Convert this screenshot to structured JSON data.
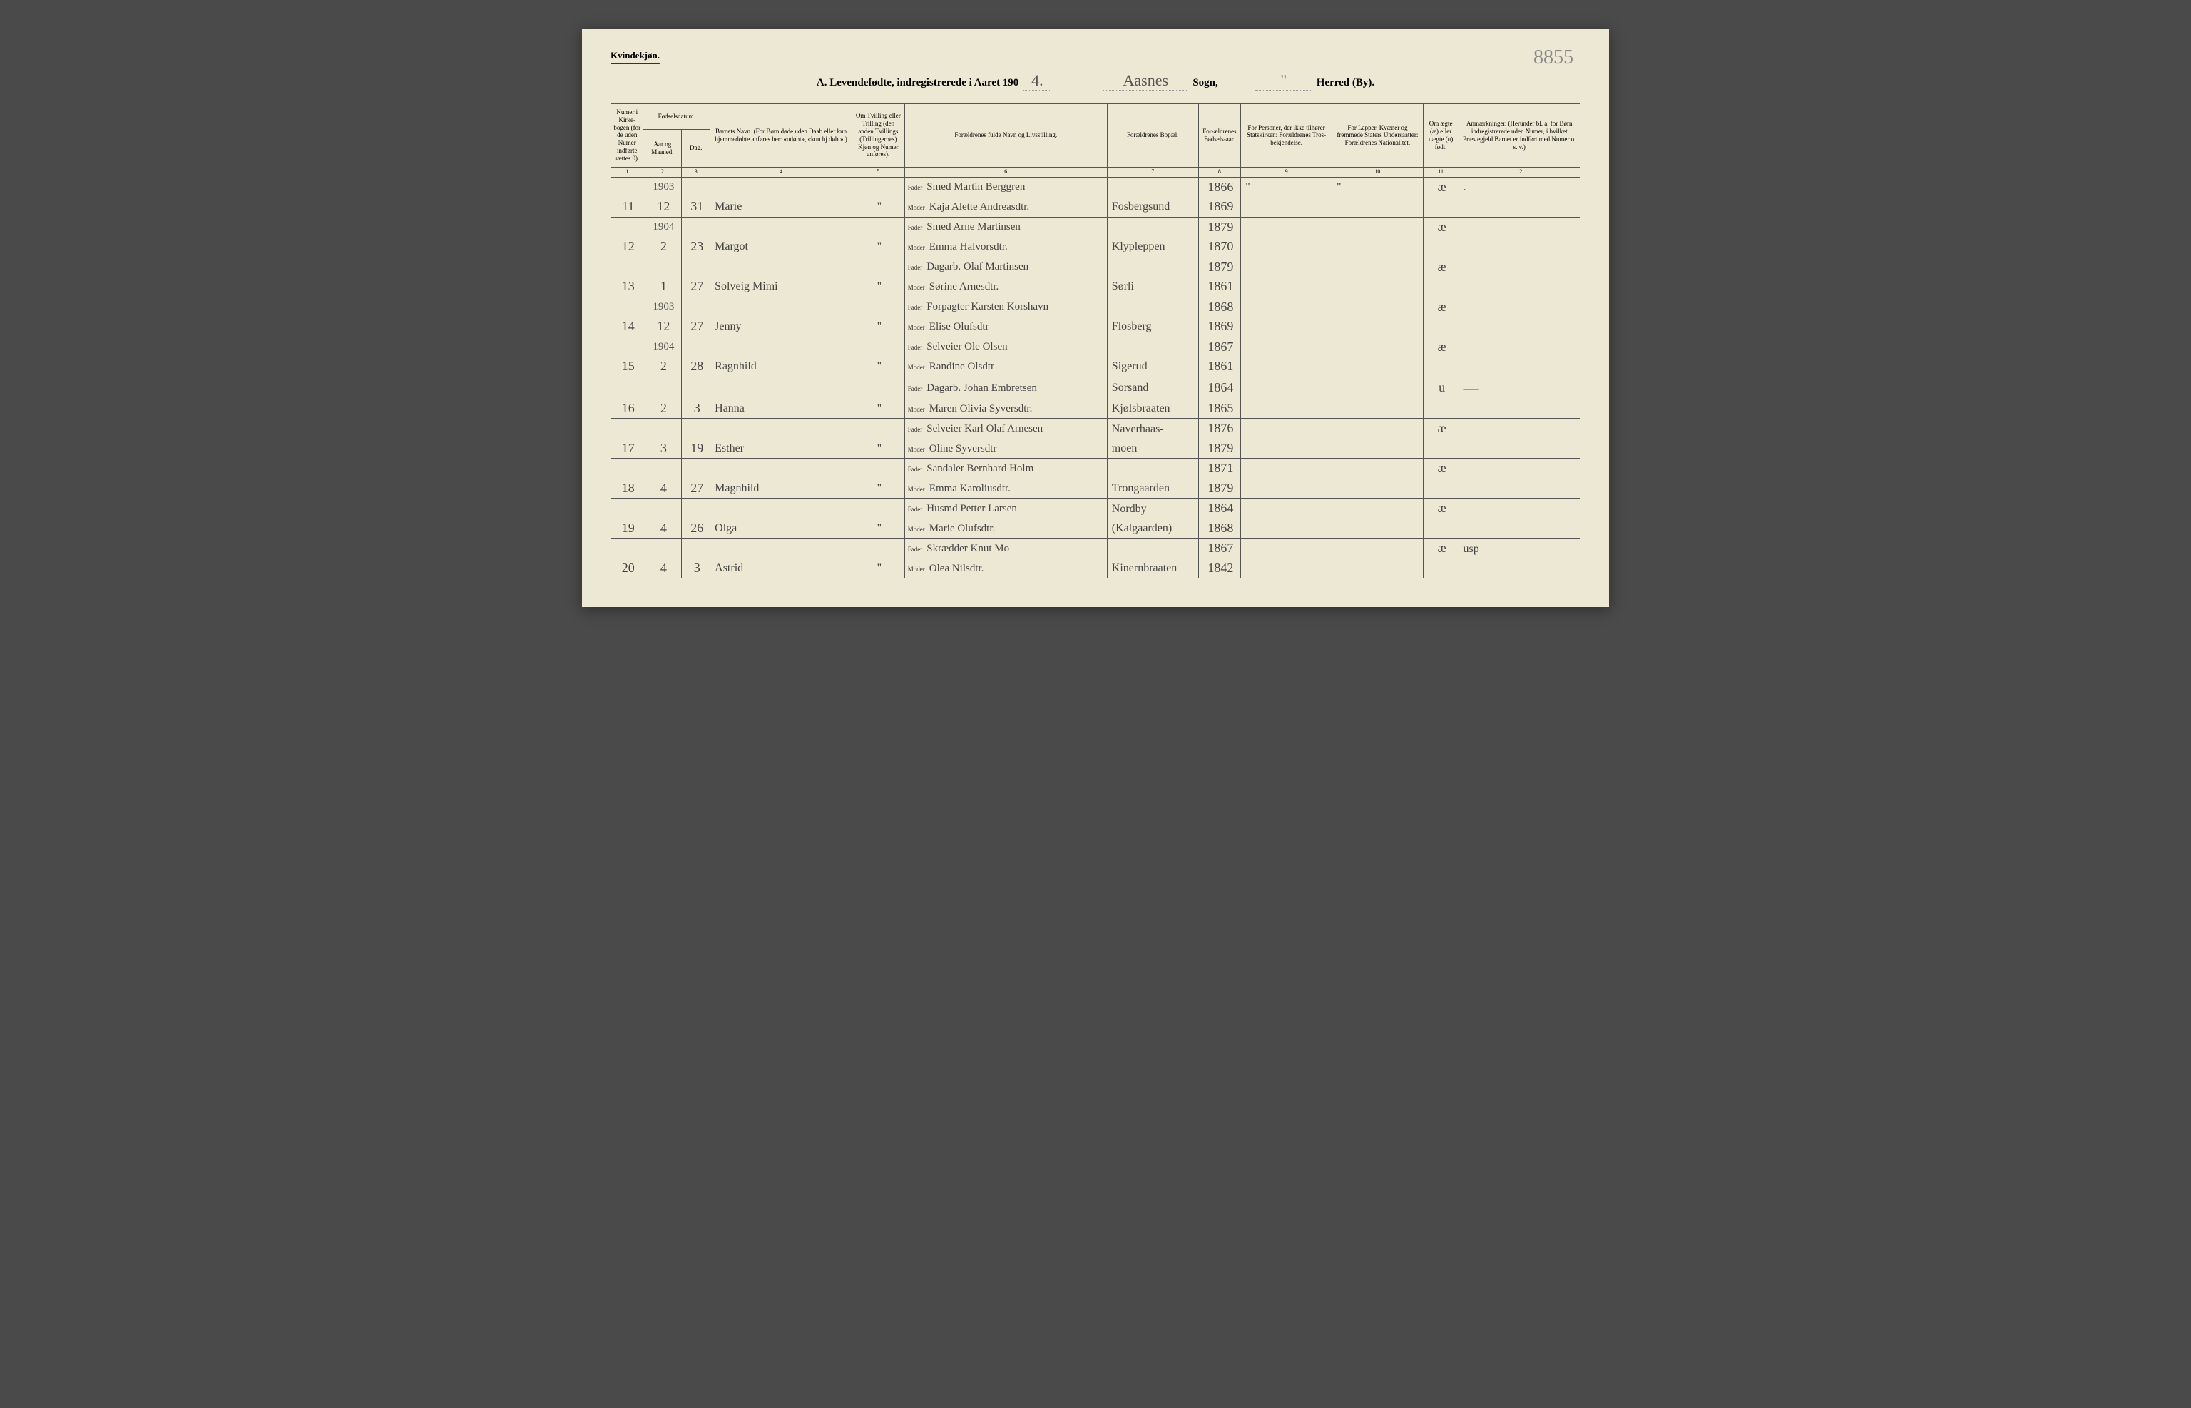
{
  "header": {
    "gender_label": "Kvindekjøn.",
    "page_number": "8855",
    "title_prefix": "A.  Levendefødte, indregistrerede i Aaret 190",
    "title_year_suffix": "4.",
    "sogn_value": "Aasnes",
    "sogn_label": "Sogn,",
    "herred_value": "\"",
    "herred_label": "Herred (By)."
  },
  "columns": {
    "c1": "Numer i Kirke-bogen (for de uden Numer indførte sættes 0).",
    "c2_group": "Fødselsdatum.",
    "c2": "Aar og Maaned.",
    "c3": "Dag.",
    "c4": "Barnets Navn.\n(For Børn døde uden Daab eller kun hjemmedøbte anføres her: «udøbt», «kun hj.døbt».)",
    "c5": "Om Tvilling eller Trilling (den anden Tvillings (Trillingernes) Kjøn og Numer anføres).",
    "c6": "Forældrenes fulde Navn og Livsstilling.",
    "c7": "Forældrenes Bopæl.",
    "c8": "For-ældrenes Fødsels-aar.",
    "c9": "For Personer, der ikke tilhører Statskirken: Forældrenes Tros-bekjendelse.",
    "c10": "For Lapper, Kvæner og fremmede Staters Undersaatter: Forældrenes Nationalitet.",
    "c11": "Om ægte (æ) eller uægte (u) født.",
    "c12": "Anmærkninger.\n(Herunder bl. a. for Børn indregistrerede uden Numer, i hvilket Præstegjeld Barnet er indført med Numer o. s. v.)"
  },
  "col_nums": [
    "1",
    "2",
    "3",
    "4",
    "5",
    "6",
    "7",
    "8",
    "9",
    "10",
    "11",
    "12"
  ],
  "labels": {
    "fader": "Fader",
    "moder": "Moder"
  },
  "years": {
    "y1903": "1903",
    "y1904": "1904"
  },
  "rows": [
    {
      "num": "11",
      "yearAbove": "1903",
      "month": "12",
      "day": "31",
      "name": "Marie",
      "twin": "\"",
      "fader": "Smed Martin Berggren",
      "moder": "Kaja Alette Andreasdtr.",
      "bopael": "Fosbergsund",
      "fYear": "1866",
      "mYear": "1869",
      "c9": "\"",
      "c10": "\"",
      "legit": "æ",
      "remarks": "."
    },
    {
      "num": "12",
      "yearAbove": "1904",
      "month": "2",
      "day": "23",
      "name": "Margot",
      "twin": "\"",
      "fader": "Smed Arne Martinsen",
      "moder": "Emma Halvorsdtr.",
      "bopael": "Klypleppen",
      "fYear": "1879",
      "mYear": "1870",
      "c9": "",
      "c10": "",
      "legit": "æ",
      "remarks": ""
    },
    {
      "num": "13",
      "yearAbove": "",
      "month": "1",
      "day": "27",
      "name": "Solveig Mimi",
      "twin": "\"",
      "fader": "Dagarb. Olaf Martinsen",
      "moder": "Sørine Arnesdtr.",
      "bopael": "Sørli",
      "fYear": "1879",
      "mYear": "1861",
      "c9": "",
      "c10": "",
      "legit": "æ",
      "remarks": ""
    },
    {
      "num": "14",
      "yearAbove": "1903",
      "month": "12",
      "day": "27",
      "name": "Jenny",
      "twin": "\"",
      "fader": "Forpagter Karsten Korshavn",
      "moder": "Elise Olufsdtr",
      "bopael": "Flosberg",
      "fYear": "1868",
      "mYear": "1869",
      "c9": "",
      "c10": "",
      "legit": "æ",
      "remarks": ""
    },
    {
      "num": "15",
      "yearAbove": "1904",
      "month": "2",
      "day": "28",
      "name": "Ragnhild",
      "twin": "\"",
      "fader": "Selveier Ole Olsen",
      "moder": "Randine Olsdtr",
      "bopael": "Sigerud",
      "fYear": "1867",
      "mYear": "1861",
      "c9": "",
      "c10": "",
      "legit": "æ",
      "remarks": ""
    },
    {
      "num": "16",
      "yearAbove": "",
      "month": "2",
      "day": "3",
      "name": "Hanna",
      "twin": "\"",
      "fader": "Dagarb. Johan Embretsen",
      "moder": "Maren Olivia Syversdtr.",
      "bopael_f": "Sorsand",
      "bopael": "Kjølsbraaten",
      "fYear": "1864",
      "mYear": "1865",
      "c9": "",
      "c10": "",
      "legit": "u",
      "remarks_blue": "—"
    },
    {
      "num": "17",
      "yearAbove": "",
      "month": "3",
      "day": "19",
      "name": "Esther",
      "twin": "\"",
      "fader": "Selveier Karl Olaf Arnesen",
      "moder": "Oline Syversdtr",
      "bopael_f": "Naverhaas-",
      "bopael": "moen",
      "fYear": "1876",
      "mYear": "1879",
      "c9": "",
      "c10": "",
      "legit": "æ",
      "remarks": ""
    },
    {
      "num": "18",
      "yearAbove": "",
      "month": "4",
      "day": "27",
      "name": "Magnhild",
      "twin": "\"",
      "fader": "Sandaler Bernhard Holm",
      "moder": "Emma Karoliusdtr.",
      "bopael": "Trongaarden",
      "fYear": "1871",
      "mYear": "1879",
      "c9": "",
      "c10": "",
      "legit": "æ",
      "remarks": ""
    },
    {
      "num": "19",
      "yearAbove": "",
      "month": "4",
      "day": "26",
      "name": "Olga",
      "twin": "\"",
      "fader": "Husmd Petter Larsen",
      "moder": "Marie Olufsdtr.",
      "bopael_f": "Nordby",
      "bopael": "(Kalgaarden)",
      "fYear": "1864",
      "mYear": "1868",
      "c9": "",
      "c10": "",
      "legit": "æ",
      "remarks": ""
    },
    {
      "num": "20",
      "yearAbove": "",
      "month": "4",
      "day": "3",
      "name": "Astrid",
      "twin": "\"",
      "fader": "Skrædder Knut Mo",
      "moder": "Olea Nilsdtr.",
      "bopael": "Kinernbraaten",
      "fYear": "1867",
      "mYear": "1842",
      "c9": "",
      "c10": "",
      "legit": "æ",
      "remarks": "usp"
    }
  ]
}
